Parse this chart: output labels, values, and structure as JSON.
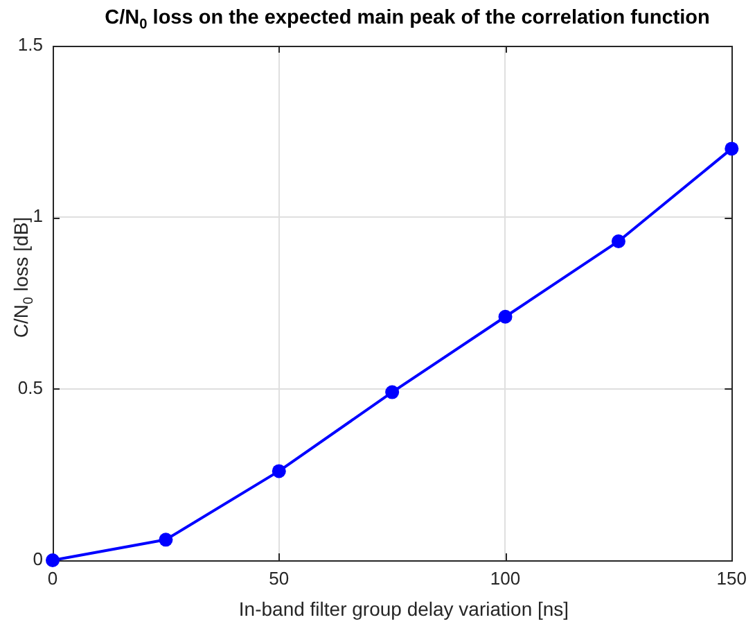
{
  "chart_data": {
    "type": "line",
    "title": "C/N$_{0}$ loss on the expected main peak of the correlation function",
    "xlabel": "In-band filter group delay variation [ns]",
    "ylabel": "C/N$_{0}$ loss [dB]",
    "x": [
      0,
      25,
      50,
      75,
      100,
      125,
      150
    ],
    "series": [
      {
        "color": "#0000ff",
        "values": [
          0,
          0.06,
          0.26,
          0.49,
          0.71,
          0.93,
          1.2
        ]
      }
    ],
    "xlim": [
      0,
      150
    ],
    "ylim": [
      0,
      1.5
    ],
    "xticks": [
      0,
      50,
      100,
      150
    ],
    "yticks": [
      0,
      0.5,
      1,
      1.5
    ],
    "grid": true,
    "marker": "circle",
    "line_style": "solid"
  }
}
